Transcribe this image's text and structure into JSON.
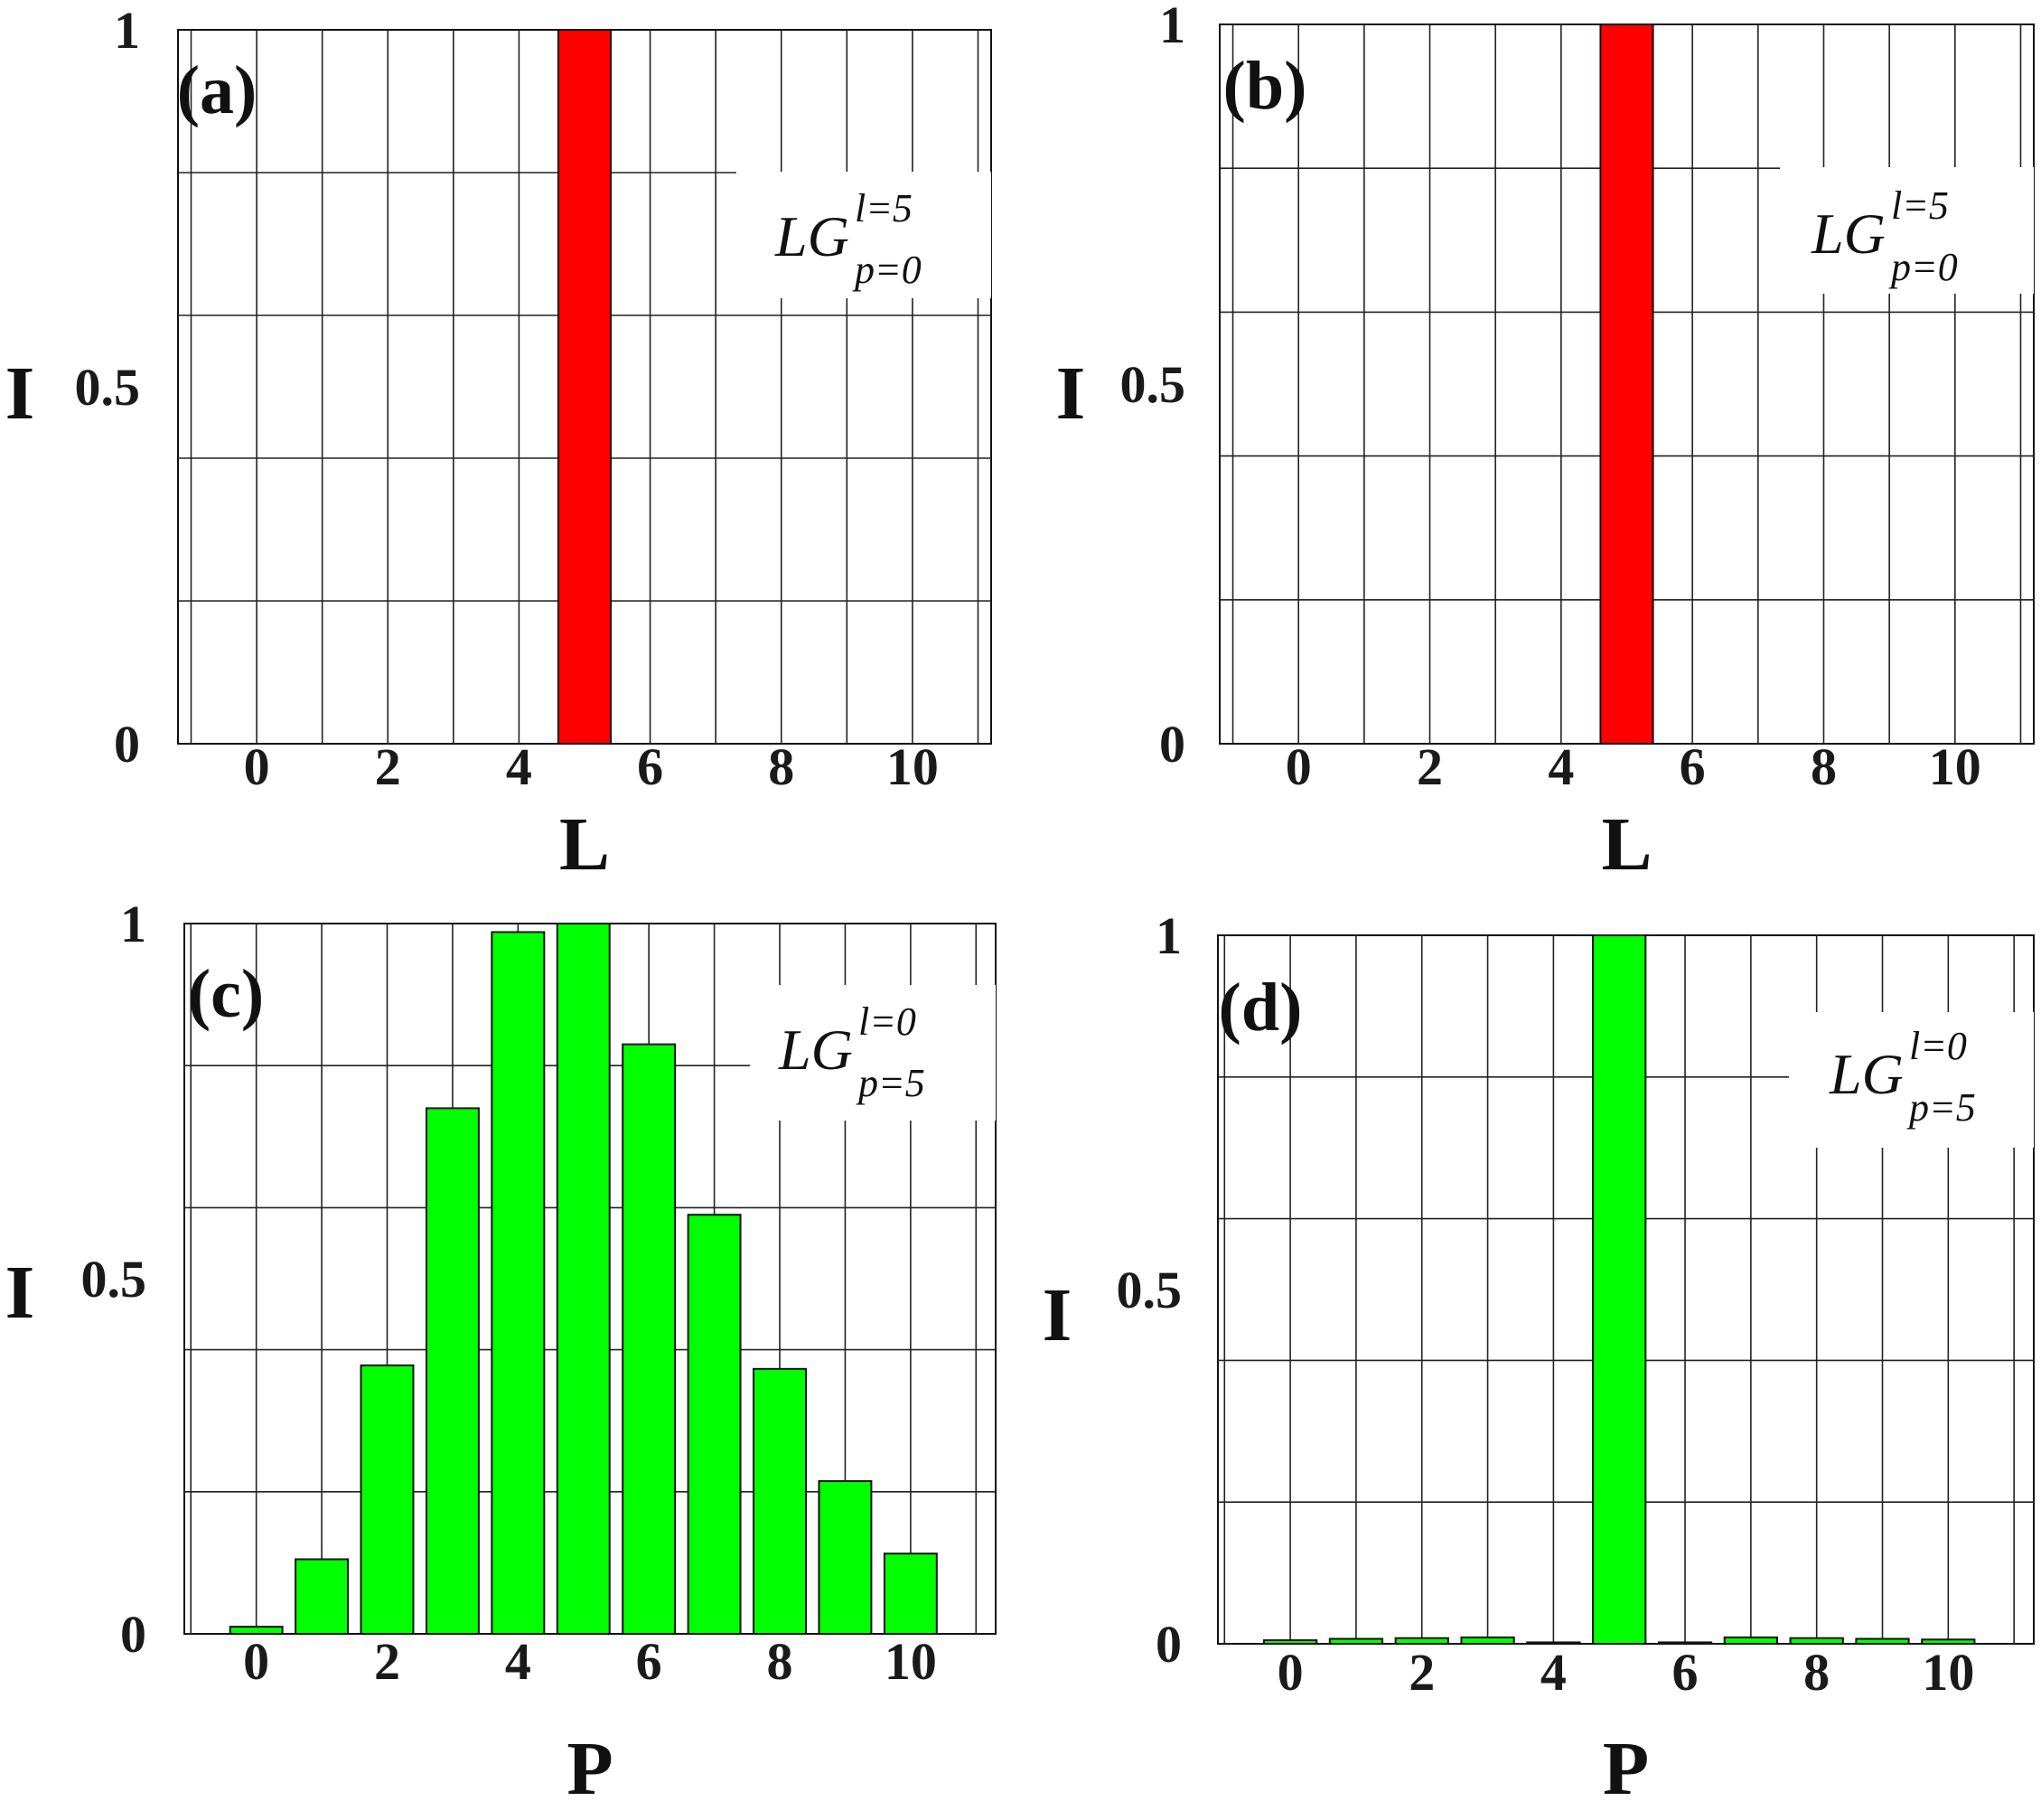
{
  "chart_data": [
    {
      "type": "bar",
      "panel_label": "(a)",
      "legend": {
        "base": "LG",
        "sup": "l=5",
        "sub": "p=0"
      },
      "xlabel": "L",
      "ylabel": "I",
      "x": [
        5
      ],
      "values": [
        1.0
      ],
      "xlim": [
        -1.2,
        11.2
      ],
      "ylim": [
        0,
        1
      ],
      "xticks": [
        0,
        2,
        4,
        6,
        8,
        10
      ],
      "yticks": [
        0,
        0.5,
        1
      ],
      "ytick_labels": [
        "0",
        "0.5",
        "1"
      ],
      "color": "#ff0000",
      "grid": true,
      "legend_position": "top-right"
    },
    {
      "type": "bar",
      "panel_label": "(b)",
      "legend": {
        "base": "LG",
        "sup": "l=5",
        "sub": "p=0"
      },
      "xlabel": "L",
      "ylabel": "I",
      "x": [
        5
      ],
      "values": [
        1.0
      ],
      "xlim": [
        -1.2,
        11.2
      ],
      "ylim": [
        0,
        1
      ],
      "xticks": [
        0,
        2,
        4,
        6,
        8,
        10
      ],
      "yticks": [
        0,
        0.5,
        1
      ],
      "ytick_labels": [
        "0",
        "0.5",
        "1"
      ],
      "color": "#ff0000",
      "grid": true,
      "legend_position": "top-right"
    },
    {
      "type": "bar",
      "panel_label": "(c)",
      "legend": {
        "base": "LG",
        "sup": "l=0",
        "sub": "p=5"
      },
      "xlabel": "P",
      "ylabel": "I",
      "x": [
        0,
        1,
        2,
        3,
        4,
        5,
        6,
        7,
        8,
        9,
        10
      ],
      "values": [
        0.01,
        0.105,
        0.378,
        0.74,
        0.988,
        1.0,
        0.83,
        0.59,
        0.373,
        0.215,
        0.113
      ],
      "xlim": [
        -1.1,
        11.3
      ],
      "ylim": [
        0,
        1
      ],
      "xticks": [
        0,
        2,
        4,
        6,
        8,
        10
      ],
      "yticks": [
        0,
        0.5,
        1
      ],
      "ytick_labels": [
        "0",
        "0.5",
        "1"
      ],
      "color": "#00ff00",
      "grid": true,
      "legend_position": "top-right"
    },
    {
      "type": "bar",
      "panel_label": "(d)",
      "legend": {
        "base": "LG",
        "sup": "l=0",
        "sub": "p=5"
      },
      "xlabel": "P",
      "ylabel": "I",
      "x": [
        0,
        1,
        2,
        3,
        4,
        5,
        6,
        7,
        8,
        9,
        10
      ],
      "values": [
        0.005,
        0.007,
        0.008,
        0.009,
        0.002,
        1.0,
        0.002,
        0.009,
        0.008,
        0.007,
        0.006
      ],
      "xlim": [
        -1.1,
        11.3
      ],
      "ylim": [
        0,
        1
      ],
      "xticks": [
        0,
        2,
        4,
        6,
        8,
        10
      ],
      "yticks": [
        0,
        0.5,
        1
      ],
      "ytick_labels": [
        "0",
        "0.5",
        "1"
      ],
      "color": "#00ff00",
      "grid": true,
      "legend_position": "top-right"
    }
  ]
}
